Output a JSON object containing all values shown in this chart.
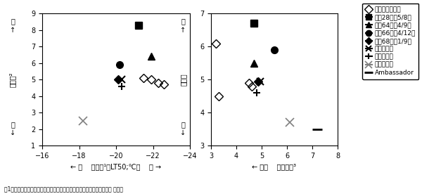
{
  "left": {
    "xlim": [
      -16,
      -24
    ],
    "ylim": [
      1,
      9
    ],
    "xticks": [
      -16,
      -18,
      -20,
      -22,
      -24
    ],
    "yticks": [
      1,
      2,
      3,
      4,
      5,
      6,
      7,
      8,
      9
    ],
    "xlabel": "← 弱    耐凍性¹（LT50;℃）    強 →",
    "series": {
      "russia": {
        "x": [
          -21.5,
          -21.9,
          -22.3,
          -22.6
        ],
        "y": [
          5.1,
          5.0,
          4.8,
          4.7
        ]
      },
      "hokkai28": {
        "x": [
          -21.2
        ],
        "y": [
          8.3
        ]
      },
      "hokiku64": {
        "x": [
          -21.9
        ],
        "y": [
          6.4
        ]
      },
      "hokiku66": {
        "x": [
          -20.2
        ],
        "y": [
          5.9
        ]
      },
      "hokiku68": {
        "x": [
          -20.1
        ],
        "y": [
          5.0
        ]
      },
      "wasemidori": {
        "x": [
          -20.3
        ],
        "y": [
          5.0
        ]
      },
      "okamidori": {
        "x": [
          -20.3
        ],
        "y": [
          4.6
        ]
      },
      "akimidori": {
        "x": [
          -18.2
        ],
        "y": [
          2.5
        ]
      },
      "ambassador": {
        "x": [],
        "y": []
      }
    }
  },
  "right": {
    "xlim": [
      3.0,
      8.0
    ],
    "ylim": [
      3,
      7
    ],
    "xticks": [
      3.0,
      4.0,
      5.0,
      6.0,
      7.0,
      8.0
    ],
    "yticks": [
      3,
      4,
      5,
      6,
      7
    ],
    "xlabel": "← 不良    秋の草勢³",
    "series": {
      "russia": {
        "x": [
          3.2,
          3.3,
          4.5,
          4.6
        ],
        "y": [
          6.1,
          4.5,
          4.9,
          4.8
        ]
      },
      "hokkai28": {
        "x": [
          4.7
        ],
        "y": [
          6.7
        ]
      },
      "hokiku64": {
        "x": [
          4.7
        ],
        "y": [
          5.5
        ]
      },
      "hokiku66": {
        "x": [
          5.5
        ],
        "y": [
          5.9
        ]
      },
      "hokiku68": {
        "x": [
          4.85
        ],
        "y": [
          4.95
        ]
      },
      "wasemidori": {
        "x": [
          4.95
        ],
        "y": [
          4.95
        ]
      },
      "okamidori": {
        "x": [
          4.8
        ],
        "y": [
          4.6
        ]
      },
      "akimidori": {
        "x": [
          6.1
        ],
        "y": [
          3.7
        ]
      },
      "ambassador": {
        "x": [
          7.2
        ],
        "y": [
          3.5
        ]
      }
    }
  },
  "legend": {
    "russia": "ロシア遂伝資源",
    "hokkai28": "北海28号（5/8）",
    "hokiku64": "北育64号（4/9）",
    "hokiku66": "北育66号（4/12）",
    "hokiku68": "北育68号（1/9）",
    "wasemidori": "ワセミドリ",
    "okamidori": "オカミドリ",
    "akimidori": "アキミドリ",
    "ambassador": "Ambassador"
  },
  "ylabel_left": "耐雪性²",
  "ylabel_right": "越冬性",
  "caption": "図1．ロシア遂伝資源とロシア遂伝資源利用系統の耐凍性と耐雪性および 越冬性"
}
